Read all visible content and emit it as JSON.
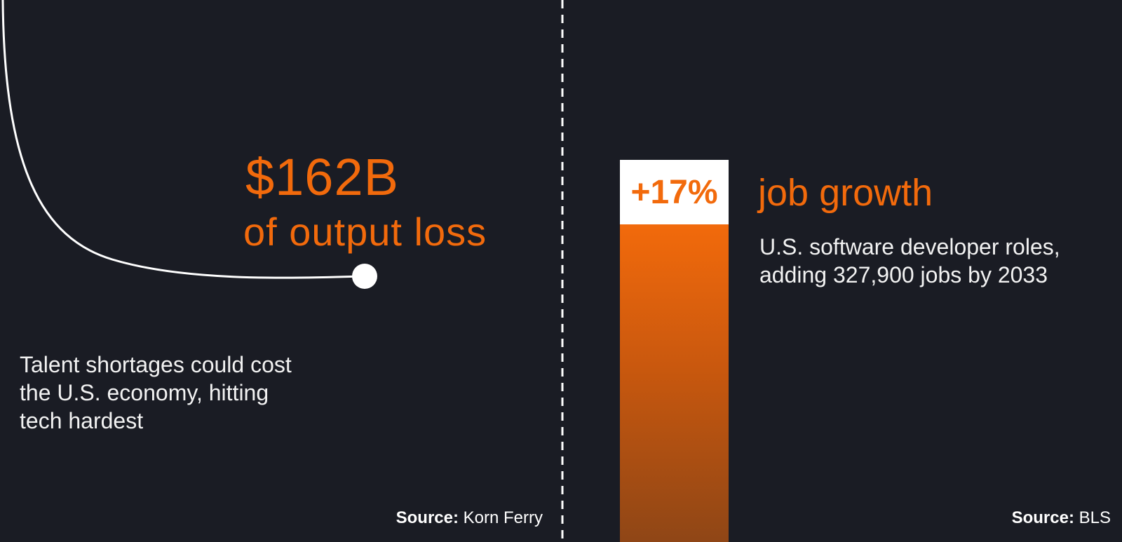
{
  "left": {
    "headline_value": "$162B",
    "headline_sub": "of output loss",
    "description": "Talent shortages could cost the U.S. economy, hitting tech hardest",
    "source_label": "Source:",
    "source_value": "Korn Ferry"
  },
  "right": {
    "bar_value_label": "+17%",
    "bar_percent": 17,
    "title": "job growth",
    "description": "U.S. software developer roles, adding 327,900 jobs by 2033",
    "source_label": "Source:",
    "source_value": "BLS"
  },
  "colors": {
    "background": "#1a1c24",
    "accent": "#f26a0c",
    "text": "#ffffff"
  }
}
